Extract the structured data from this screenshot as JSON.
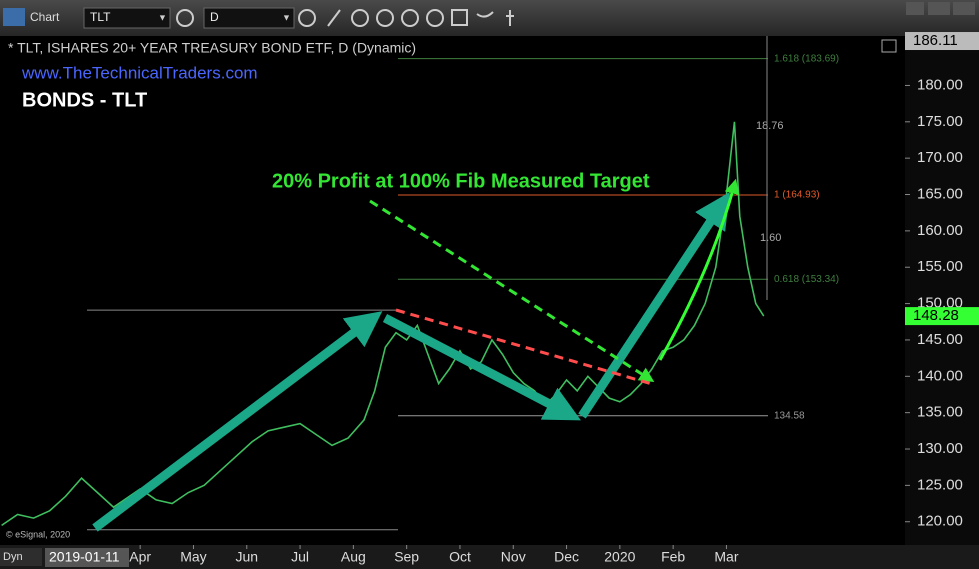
{
  "toolbar": {
    "window": "Chart",
    "symbol": "TLT",
    "interval": "D",
    "mode": "Dyn"
  },
  "chart_data": {
    "type": "line",
    "title": "* TLT, ISHARES 20+ YEAR TREASURY BOND ETF, D (Dynamic)",
    "subtitle": "www.TheTechnicalTraders.com",
    "heading": "BONDS - TLT",
    "annotation": "20% Profit at 100% Fib Measured Target",
    "measures": [
      "18.76",
      "1.60"
    ],
    "copyright": "© eSignal, 2020",
    "cursor_date": "2019-01-11",
    "last_price": {
      "value": 148.28,
      "label": "148.28"
    },
    "high_price": {
      "value": 186.11,
      "label": "186.11"
    },
    "fib_levels": [
      {
        "value": 183.69,
        "label": "1.618 (183.69)",
        "color": "#3f7f3f"
      },
      {
        "value": 164.93,
        "label": "1 (164.93)",
        "color": "#e05a2a"
      },
      {
        "value": 153.34,
        "label": "0.618 (153.34)",
        "color": "#3f7f3f"
      },
      {
        "value": 134.58,
        "label": "134.58",
        "color": "#9a9a9a"
      }
    ],
    "reference_lines": [
      149.1,
      118.9
    ],
    "series": [
      {
        "name": "TLT",
        "color": "#3fbf5f",
        "x": [
          0.4,
          0.7,
          1.0,
          1.3,
          1.6,
          1.9,
          2.2,
          2.5,
          2.8,
          3.0,
          3.3,
          3.6,
          3.9,
          4.2,
          4.5,
          4.8,
          5.1,
          5.4,
          5.7,
          6.0,
          6.3,
          6.6,
          6.9,
          7.2,
          7.4,
          7.6,
          7.8,
          8.0,
          8.2,
          8.4,
          8.6,
          8.8,
          9.0,
          9.2,
          9.4,
          9.6,
          9.8,
          10.0,
          10.2,
          10.4,
          10.6,
          10.8,
          11.0,
          11.2,
          11.4,
          11.6,
          11.8,
          12.0,
          12.2,
          12.4,
          12.6,
          12.8,
          13.0,
          13.2,
          13.4,
          13.6,
          13.8,
          14.0,
          14.15,
          14.25,
          14.4,
          14.55,
          14.7
        ],
        "values": [
          119.5,
          121,
          120.5,
          121.5,
          123.5,
          126,
          124,
          122,
          123.5,
          124.5,
          123,
          122.5,
          124,
          125,
          127,
          129,
          131,
          132.5,
          133,
          133.5,
          132,
          130.5,
          131.5,
          134,
          138,
          144,
          146,
          145,
          147,
          143,
          139,
          141,
          143.5,
          141,
          142,
          145,
          143,
          140.5,
          139,
          138,
          136,
          137.5,
          139.5,
          138,
          140,
          138.5,
          137,
          136.5,
          137.5,
          139,
          141,
          143.5,
          144,
          145,
          147,
          150,
          155,
          165,
          175,
          162,
          155,
          150,
          148.28
        ]
      }
    ],
    "xlim": [
      0.37,
      17.35
    ],
    "xticks": [
      {
        "value": 3,
        "label": "Apr"
      },
      {
        "value": 4,
        "label": "May"
      },
      {
        "value": 5,
        "label": "Jun"
      },
      {
        "value": 6,
        "label": "Jul"
      },
      {
        "value": 7,
        "label": "Aug"
      },
      {
        "value": 8,
        "label": "Sep"
      },
      {
        "value": 9,
        "label": "Oct"
      },
      {
        "value": 10,
        "label": "Nov"
      },
      {
        "value": 11,
        "label": "Dec"
      },
      {
        "value": 12,
        "label": "2020"
      },
      {
        "value": 13,
        "label": "Feb"
      },
      {
        "value": 14,
        "label": "Mar"
      }
    ],
    "ylim": [
      116.8,
      186.8
    ],
    "yticks": [
      {
        "value": 120,
        "label": "120.00"
      },
      {
        "value": 125,
        "label": "125.00"
      },
      {
        "value": 130,
        "label": "130.00"
      },
      {
        "value": 135,
        "label": "135.00"
      },
      {
        "value": 140,
        "label": "140.00"
      },
      {
        "value": 145,
        "label": "145.00"
      },
      {
        "value": 150,
        "label": "150.00"
      },
      {
        "value": 155,
        "label": "155.00"
      },
      {
        "value": 160,
        "label": "160.00"
      },
      {
        "value": 165,
        "label": "165.00"
      },
      {
        "value": 170,
        "label": "170.00"
      },
      {
        "value": 175,
        "label": "175.00"
      },
      {
        "value": 180,
        "label": "180.00"
      }
    ],
    "grid": false
  }
}
